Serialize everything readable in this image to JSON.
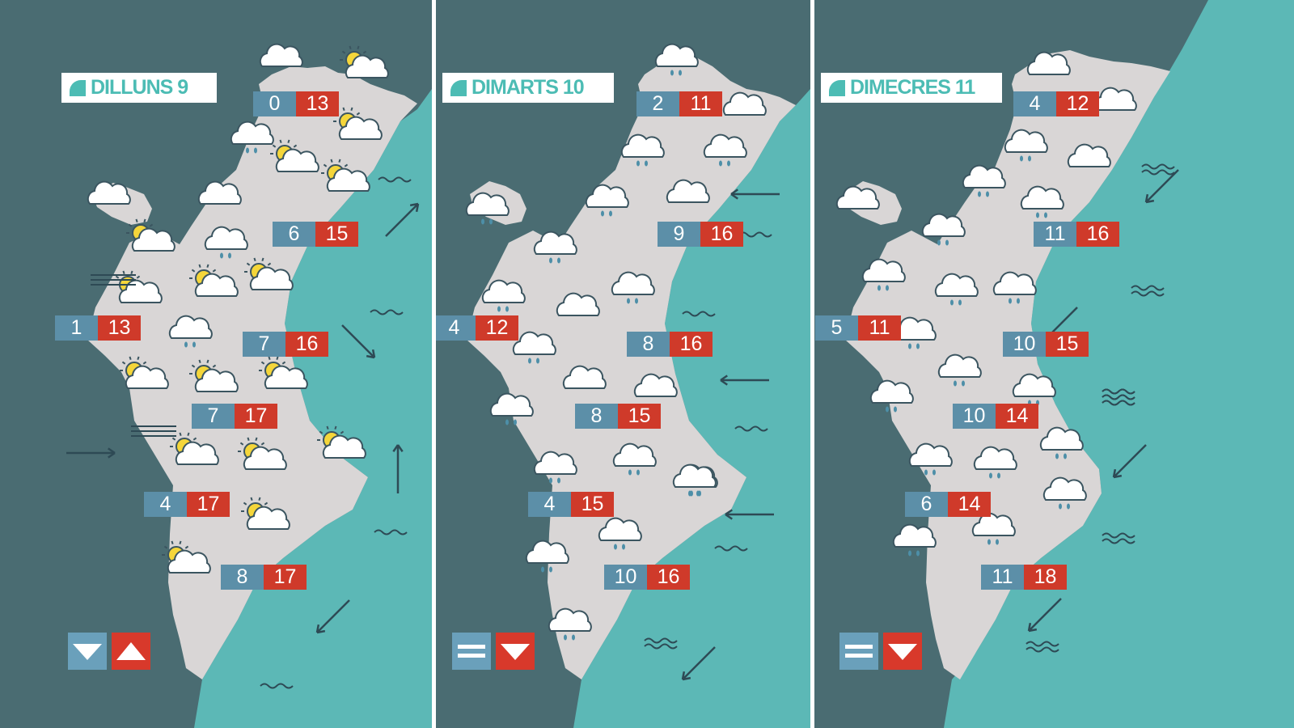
{
  "colors": {
    "land": "#d9d6d6",
    "sea": "#5cb8b6",
    "background": "#4a6c72",
    "tmin": "#5c8fa8",
    "tmax": "#cf3a2a",
    "accent": "#4cbcb4"
  },
  "days": [
    {
      "label": "DILLUNS 9",
      "trend": [
        "down",
        "up"
      ],
      "temps": [
        {
          "min": "0",
          "max": "13"
        },
        {
          "min": "6",
          "max": "15"
        },
        {
          "min": "1",
          "max": "13"
        },
        {
          "min": "7",
          "max": "16"
        },
        {
          "min": "7",
          "max": "17"
        },
        {
          "min": "4",
          "max": "17"
        },
        {
          "min": "8",
          "max": "17"
        }
      ],
      "icons": [
        "cloud-icon",
        "sun-cloud-icon",
        "sun-cloud-icon",
        "cloud-rain-icon",
        "sun-cloud-icon",
        "sun-cloud-icon",
        "cloud-icon",
        "cloud-icon",
        "sun-cloud-icon",
        "cloud-rain-icon",
        "sun-cloud-icon",
        "sun-cloud-icon",
        "sun-cloud-icon",
        "cloud-rain-icon",
        "sun-cloud-icon",
        "sun-cloud-icon",
        "sun-cloud-icon",
        "sun-cloud-icon",
        "sun-cloud-icon",
        "sun-cloud-icon",
        "sun-cloud-icon",
        "sun-cloud-icon"
      ],
      "wind": [
        "arrow-ne-icon",
        "arrow-se-icon",
        "arrow-east-icon",
        "arrow-north-icon",
        "arrow-sw-icon"
      ],
      "waves": [
        "calm-sea-icon",
        "calm-sea-icon",
        "calm-sea-icon",
        "calm-sea-icon",
        "fog-icon",
        "fog-icon"
      ]
    },
    {
      "label": "DIMARTS 10",
      "trend": [
        "equal",
        "down"
      ],
      "temps": [
        {
          "min": "2",
          "max": "11"
        },
        {
          "min": "9",
          "max": "16"
        },
        {
          "min": "4",
          "max": "12"
        },
        {
          "min": "8",
          "max": "16"
        },
        {
          "min": "8",
          "max": "15"
        },
        {
          "min": "4",
          "max": "15"
        },
        {
          "min": "10",
          "max": "16"
        }
      ],
      "icons": [
        "cloud-rain-icon",
        "cloud-icon",
        "cloud-rain-icon",
        "cloud-rain-icon",
        "cloud-rain-icon",
        "cloud-icon",
        "cloud-rain-icon",
        "cloud-rain-icon",
        "cloud-rain-icon",
        "cloud-icon",
        "cloud-rain-icon",
        "cloud-rain-icon",
        "cloud-icon",
        "cloud-icon",
        "cloud-rain-icon",
        "cloud-rain-icon",
        "cloud-rain-icon",
        "cloud-rain-icon",
        "cloud-rain-icon",
        "cloud-rain-icon",
        "cloud-rain-icon",
        "cloud-rain-icon"
      ],
      "wind": [
        "arrow-west-icon",
        "arrow-west-icon",
        "arrow-west-icon",
        "arrow-sw-icon"
      ],
      "waves": [
        "calm-sea-icon",
        "calm-sea-icon",
        "calm-sea-icon",
        "calm-sea-icon",
        "choppy-sea-icon"
      ]
    },
    {
      "label": "DIMECRES 11",
      "trend": [
        "equal",
        "down"
      ],
      "temps": [
        {
          "min": "4",
          "max": "12"
        },
        {
          "min": "11",
          "max": "16"
        },
        {
          "min": "5",
          "max": "11"
        },
        {
          "min": "10",
          "max": "15"
        },
        {
          "min": "10",
          "max": "14"
        },
        {
          "min": "6",
          "max": "14"
        },
        {
          "min": "11",
          "max": "18"
        }
      ],
      "icons": [
        "cloud-icon",
        "cloud-icon",
        "cloud-rain-icon",
        "cloud-icon",
        "cloud-rain-icon",
        "cloud-rain-icon",
        "cloud-icon",
        "cloud-rain-icon",
        "cloud-rain-icon",
        "cloud-rain-icon",
        "cloud-rain-icon",
        "cloud-rain-icon",
        "cloud-rain-icon",
        "cloud-rain-icon",
        "cloud-rain-icon",
        "cloud-rain-icon",
        "cloud-rain-icon",
        "cloud-rain-icon",
        "cloud-rain-icon",
        "cloud-rain-icon",
        "cloud-rain-icon"
      ],
      "wind": [
        "arrow-sw-icon",
        "arrow-sw-icon",
        "arrow-sw-icon",
        "arrow-sw-icon"
      ],
      "waves": [
        "choppy-sea-icon",
        "choppy-sea-icon",
        "rough-sea-icon",
        "choppy-sea-icon",
        "choppy-sea-icon",
        "rough-sea-icon"
      ]
    }
  ]
}
